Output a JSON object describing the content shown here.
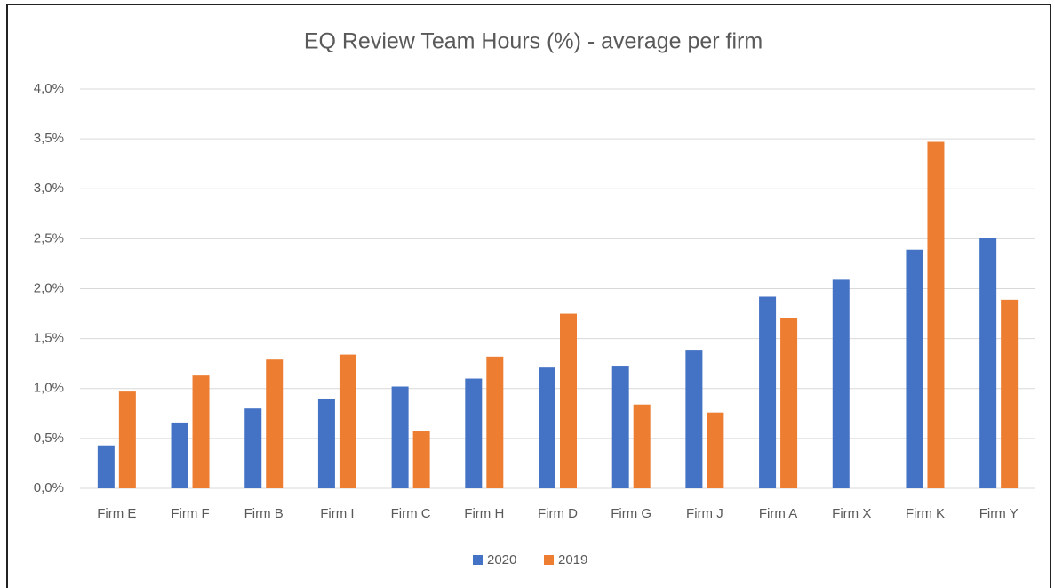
{
  "chart_data": {
    "type": "bar",
    "title": "EQ Review Team Hours (%) - average per firm",
    "categories": [
      "Firm E",
      "Firm F",
      "Firm B",
      "Firm I",
      "Firm C",
      "Firm H",
      "Firm D",
      "Firm G",
      "Firm J",
      "Firm A",
      "Firm X",
      "Firm K",
      "Firm Y"
    ],
    "series": [
      {
        "name": "2020",
        "color": "#4472c4",
        "values": [
          0.43,
          0.66,
          0.8,
          0.9,
          1.02,
          1.1,
          1.21,
          1.22,
          1.38,
          1.92,
          2.09,
          2.39,
          2.51
        ]
      },
      {
        "name": "2019",
        "color": "#ed7d31",
        "values": [
          0.97,
          1.13,
          1.29,
          1.34,
          0.57,
          1.32,
          1.75,
          0.84,
          0.76,
          1.71,
          null,
          3.47,
          1.89
        ]
      }
    ],
    "ylim": [
      0,
      4
    ],
    "yticks": [
      {
        "value": 0,
        "label": "0,0%"
      },
      {
        "value": 0.5,
        "label": "0,5%"
      },
      {
        "value": 1,
        "label": "1,0%"
      },
      {
        "value": 1.5,
        "label": "1,5%"
      },
      {
        "value": 2,
        "label": "2,0%"
      },
      {
        "value": 2.5,
        "label": "2,5%"
      },
      {
        "value": 3,
        "label": "3,0%"
      },
      {
        "value": 3.5,
        "label": "3,5%"
      },
      {
        "value": 4,
        "label": "4,0%"
      }
    ],
    "grid": true,
    "legend": "bottom"
  }
}
